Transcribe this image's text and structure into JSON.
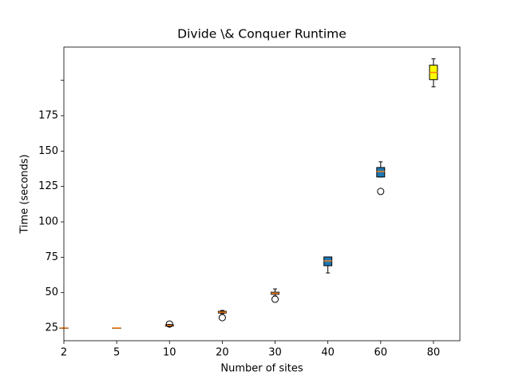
{
  "chart_data": {
    "type": "box",
    "title": "Divide \\& Conquer Runtime",
    "x_label": "Number of sites",
    "y_label": "Time (seconds)",
    "categories": [
      "2",
      "5",
      "10",
      "20",
      "30",
      "40",
      "60",
      "80"
    ],
    "xlim": [
      1,
      8.5
    ],
    "ylim": [
      16,
      223.5
    ],
    "yticks": [
      25,
      50,
      75,
      100,
      125,
      150,
      175
    ],
    "unlabeled_yticks": [
      200
    ],
    "median_color": "#ff7f0e",
    "boxes": [
      {
        "whislo": 25,
        "q1": 25,
        "med": 25,
        "q3": 25,
        "whishi": 25,
        "fliers": [],
        "color": "#ffffff"
      },
      {
        "whislo": 25,
        "q1": 25,
        "med": 25,
        "q3": 25,
        "whishi": 25,
        "fliers": [],
        "color": "#ffffff"
      },
      {
        "whislo": 26,
        "q1": 26.3,
        "med": 26.8,
        "q3": 27.3,
        "whishi": 27.5,
        "fliers": [
          27.8
        ],
        "color": "#ffffff"
      },
      {
        "whislo": 35.2,
        "q1": 35.6,
        "med": 36.2,
        "q3": 36.8,
        "whishi": 37.4,
        "fliers": [
          32.3
        ],
        "color": "#ffffff"
      },
      {
        "whislo": 47.6,
        "q1": 48.8,
        "med": 49.5,
        "q3": 50.3,
        "whishi": 52.6,
        "fliers": [
          45.3
        ],
        "color": "#ffffff"
      },
      {
        "whislo": 63.9,
        "q1": 69,
        "med": 72.4,
        "q3": 75.2,
        "whishi": 75.2,
        "fliers": [],
        "color": "#1f77b4"
      },
      {
        "whislo": 131.7,
        "q1": 131.7,
        "med": 135.6,
        "q3": 138.4,
        "whishi": 142.4,
        "fliers": [
          121.5
        ],
        "color": "#1f77b4"
      },
      {
        "whislo": 195.4,
        "q1": 200.5,
        "med": 205.6,
        "q3": 210.7,
        "whishi": 215.2,
        "fliers": [],
        "color": "#ffff00"
      }
    ]
  }
}
